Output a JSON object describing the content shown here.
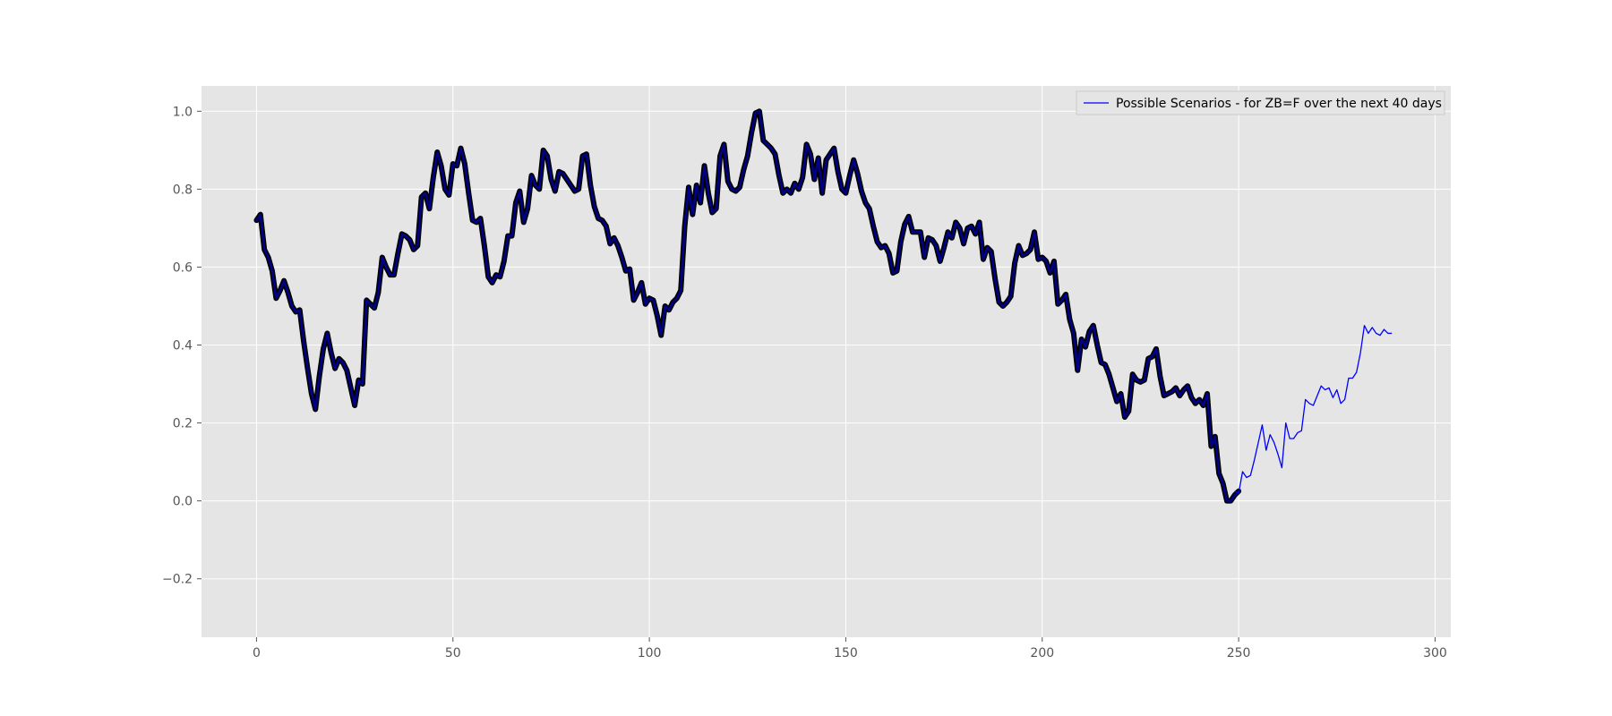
{
  "chart_data": {
    "type": "line",
    "title": "",
    "xlabel": "",
    "ylabel": "",
    "xlim": [
      -14,
      304
    ],
    "ylim": [
      -0.35,
      1.065
    ],
    "x_ticks": [
      0,
      50,
      100,
      150,
      200,
      250,
      300
    ],
    "y_ticks": [
      -0.2,
      0.0,
      0.2,
      0.4,
      0.6,
      0.8,
      1.0
    ],
    "x_tick_labels": [
      "0",
      "50",
      "100",
      "150",
      "200",
      "250",
      "300"
    ],
    "y_tick_labels": [
      "−0.2",
      "0.0",
      "0.2",
      "0.4",
      "0.6",
      "0.8",
      "1.0"
    ],
    "grid": true,
    "legend_position": "top-right",
    "colors": {
      "plot_background": "#e5e5e5",
      "grid": "#ffffff",
      "history_outline": "#000000",
      "history_line": "#00008b",
      "scenario_line": "#0000ff"
    },
    "series": [
      {
        "name": "",
        "style": "history",
        "x_start": 0,
        "values": [
          0.72,
          0.735,
          0.645,
          0.625,
          0.59,
          0.52,
          0.54,
          0.565,
          0.535,
          0.5,
          0.485,
          0.49,
          0.41,
          0.34,
          0.275,
          0.235,
          0.32,
          0.39,
          0.43,
          0.38,
          0.34,
          0.365,
          0.355,
          0.335,
          0.29,
          0.245,
          0.31,
          0.3,
          0.515,
          0.505,
          0.495,
          0.535,
          0.625,
          0.6,
          0.58,
          0.58,
          0.635,
          0.685,
          0.68,
          0.67,
          0.645,
          0.655,
          0.78,
          0.79,
          0.75,
          0.83,
          0.895,
          0.86,
          0.8,
          0.785,
          0.865,
          0.86,
          0.905,
          0.865,
          0.79,
          0.72,
          0.715,
          0.725,
          0.655,
          0.575,
          0.56,
          0.58,
          0.575,
          0.615,
          0.68,
          0.68,
          0.765,
          0.795,
          0.715,
          0.75,
          0.835,
          0.81,
          0.8,
          0.9,
          0.885,
          0.825,
          0.795,
          0.845,
          0.84,
          0.825,
          0.81,
          0.795,
          0.8,
          0.885,
          0.89,
          0.81,
          0.755,
          0.725,
          0.72,
          0.705,
          0.66,
          0.675,
          0.655,
          0.625,
          0.59,
          0.595,
          0.515,
          0.535,
          0.56,
          0.505,
          0.52,
          0.515,
          0.475,
          0.425,
          0.5,
          0.49,
          0.51,
          0.52,
          0.54,
          0.705,
          0.805,
          0.735,
          0.81,
          0.765,
          0.86,
          0.79,
          0.74,
          0.75,
          0.885,
          0.915,
          0.82,
          0.8,
          0.795,
          0.805,
          0.85,
          0.885,
          0.945,
          0.995,
          1.0,
          0.925,
          0.915,
          0.905,
          0.89,
          0.835,
          0.79,
          0.8,
          0.79,
          0.815,
          0.8,
          0.83,
          0.915,
          0.89,
          0.825,
          0.88,
          0.79,
          0.875,
          0.89,
          0.905,
          0.845,
          0.8,
          0.79,
          0.835,
          0.875,
          0.84,
          0.795,
          0.765,
          0.75,
          0.705,
          0.665,
          0.65,
          0.655,
          0.635,
          0.585,
          0.59,
          0.665,
          0.71,
          0.73,
          0.69,
          0.69,
          0.69,
          0.625,
          0.675,
          0.67,
          0.655,
          0.615,
          0.65,
          0.69,
          0.675,
          0.715,
          0.7,
          0.66,
          0.7,
          0.705,
          0.685,
          0.715,
          0.62,
          0.65,
          0.64,
          0.57,
          0.51,
          0.5,
          0.51,
          0.525,
          0.61,
          0.655,
          0.63,
          0.635,
          0.645,
          0.69,
          0.62,
          0.625,
          0.615,
          0.585,
          0.615,
          0.505,
          0.515,
          0.53,
          0.465,
          0.43,
          0.335,
          0.415,
          0.395,
          0.435,
          0.45,
          0.4,
          0.355,
          0.35,
          0.325,
          0.29,
          0.255,
          0.275,
          0.215,
          0.23,
          0.325,
          0.31,
          0.305,
          0.31,
          0.365,
          0.37,
          0.39,
          0.32,
          0.27,
          0.275,
          0.28,
          0.29,
          0.27,
          0.285,
          0.295,
          0.265,
          0.25,
          0.26,
          0.245,
          0.275,
          0.14,
          0.165,
          0.07,
          0.045,
          0.0,
          0.0,
          0.015,
          0.025
        ]
      },
      {
        "name": "Possible Scenarios - for ZB=F over the next 40 days",
        "style": "scenario",
        "x_start": 249,
        "values": [
          0.025,
          0.02,
          0.075,
          0.06,
          0.065,
          0.105,
          0.15,
          0.195,
          0.13,
          0.17,
          0.15,
          0.12,
          0.085,
          0.2,
          0.16,
          0.16,
          0.175,
          0.18,
          0.26,
          0.25,
          0.245,
          0.27,
          0.295,
          0.285,
          0.29,
          0.265,
          0.285,
          0.25,
          0.26,
          0.315,
          0.315,
          0.33,
          0.38,
          0.45,
          0.43,
          0.445,
          0.43,
          0.425,
          0.44,
          0.43,
          0.43
        ]
      }
    ]
  }
}
